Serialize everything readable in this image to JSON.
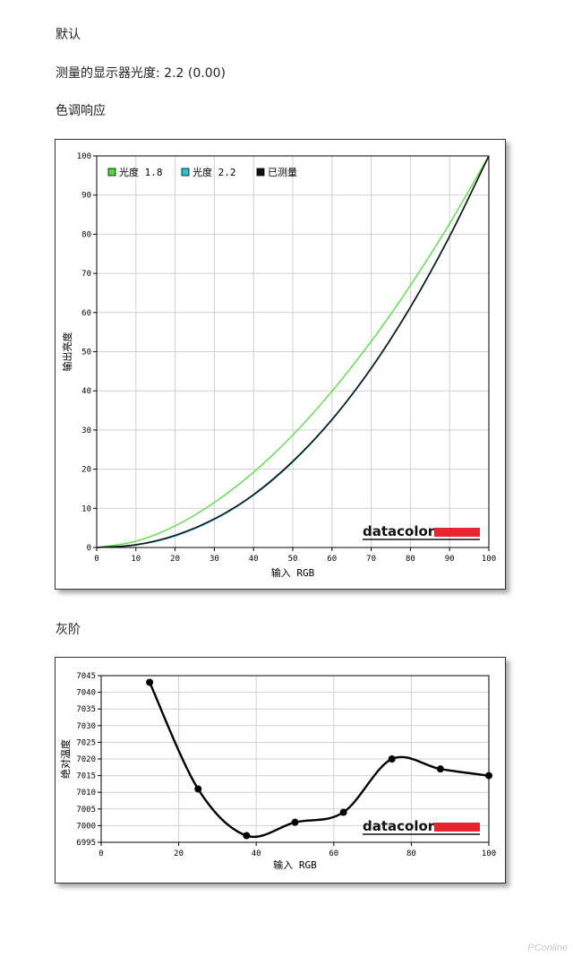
{
  "texts": {
    "mode": "默认",
    "measured_gamma": "测量的显示器光度: 2.2 (0.00)",
    "tone_response_heading": "色调响应",
    "grayscale_heading": "灰阶",
    "watermark": "PConline"
  },
  "brand": {
    "name": "datacolor",
    "bar_color": "#e8252e"
  },
  "chart_data": [
    {
      "type": "line",
      "title": "色调响应",
      "xlabel": "输入 RGB",
      "ylabel": "输出亮度",
      "xlim": [
        0,
        100
      ],
      "ylim": [
        0,
        100
      ],
      "xticks": [
        "0",
        "10",
        "20",
        "30",
        "40",
        "50",
        "60",
        "70",
        "80",
        "90",
        "100"
      ],
      "yticks": [
        "0",
        "10",
        "20",
        "30",
        "40",
        "50",
        "60",
        "70",
        "80",
        "90",
        "100"
      ],
      "grid": true,
      "legend_position": "top-left",
      "series": [
        {
          "name": "光度 1.8",
          "color": "#4bdc36",
          "x": [
            0,
            10,
            20,
            30,
            40,
            50,
            60,
            70,
            80,
            90,
            100
          ],
          "y": [
            0,
            1.6,
            5.5,
            11.5,
            19.2,
            28.7,
            39.9,
            52.6,
            66.9,
            82.7,
            100
          ]
        },
        {
          "name": "光度 2.2",
          "color": "#27c6d8",
          "x": [
            0,
            10,
            20,
            30,
            40,
            50,
            60,
            70,
            80,
            90,
            100
          ],
          "y": [
            0,
            0.6,
            2.9,
            7.1,
            13.3,
            21.8,
            32.5,
            45.6,
            61.2,
            79.3,
            100
          ]
        },
        {
          "name": "已测量",
          "color": "#111111",
          "x": [
            0,
            10,
            20,
            30,
            40,
            50,
            60,
            70,
            80,
            90,
            100
          ],
          "y": [
            0,
            0.7,
            3.1,
            7.3,
            13.5,
            22,
            32.7,
            45.8,
            61.4,
            79.5,
            100
          ]
        }
      ]
    },
    {
      "type": "line",
      "title": "灰阶",
      "xlabel": "输入 RGB",
      "ylabel": "绝对温度",
      "xlim": [
        0,
        100
      ],
      "ylim": [
        6995,
        7045
      ],
      "xticks": [
        "0",
        "20",
        "40",
        "60",
        "80",
        "100"
      ],
      "yticks": [
        "6995",
        "7000",
        "7005",
        "7010",
        "7015",
        "7020",
        "7025",
        "7030",
        "7035",
        "7040",
        "7045"
      ],
      "grid": true,
      "series": [
        {
          "color": "#000000",
          "x": [
            12.5,
            25,
            37.5,
            50,
            62.5,
            75,
            87.5,
            100
          ],
          "y": [
            7043,
            7011,
            6997,
            7001,
            7004,
            7020,
            7017,
            7015
          ]
        }
      ]
    }
  ]
}
